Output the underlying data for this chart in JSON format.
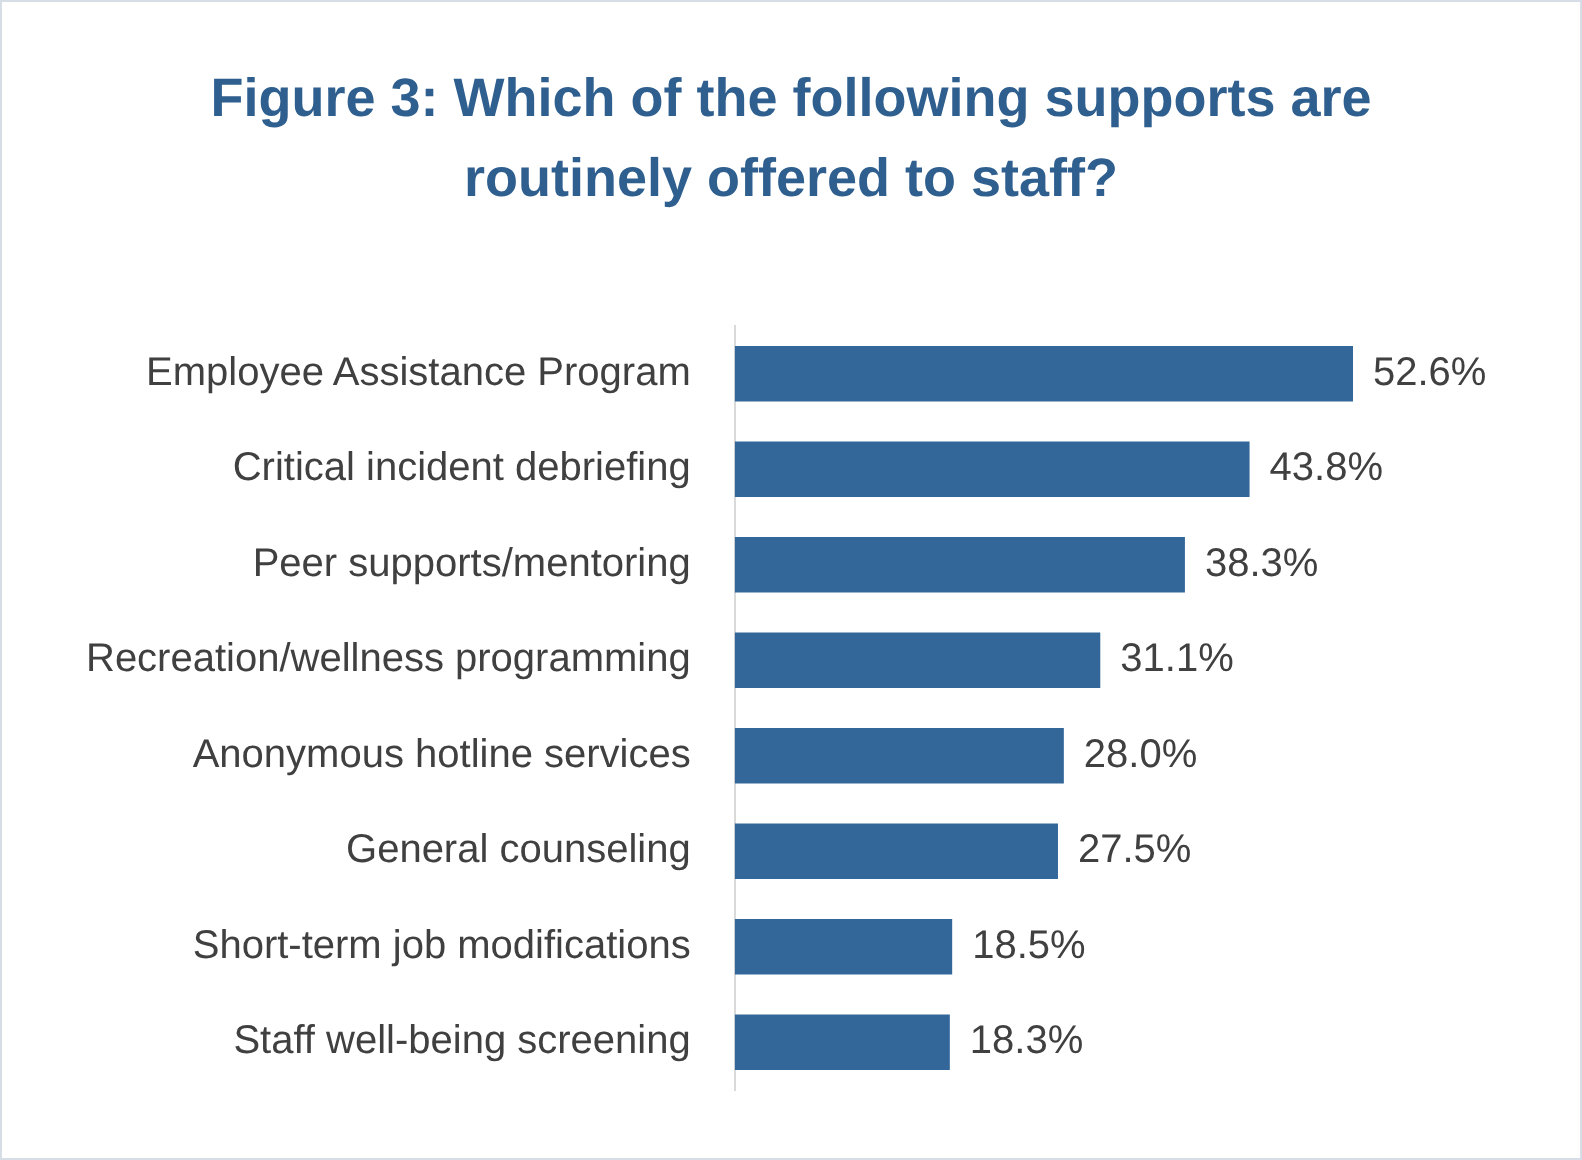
{
  "chart_data": {
    "type": "bar",
    "orientation": "horizontal",
    "title": "Figure 3: Which of the following supports are routinely offered to staff?",
    "categories": [
      "Employee Assistance Program",
      "Critical incident debriefing",
      "Peer supports/mentoring",
      "Recreation/wellness programming",
      "Anonymous hotline services",
      "General counseling",
      "Short-term job modifications",
      "Staff well-being screening"
    ],
    "values": [
      52.6,
      43.8,
      38.3,
      31.1,
      28.0,
      27.5,
      18.5,
      18.3
    ],
    "value_labels": [
      "52.6%",
      "43.8%",
      "38.3%",
      "31.1%",
      "28.0%",
      "27.5%",
      "18.5%",
      "18.3%"
    ],
    "color": "#336699",
    "tick_labels": "y",
    "grid": false,
    "legend": false
  }
}
